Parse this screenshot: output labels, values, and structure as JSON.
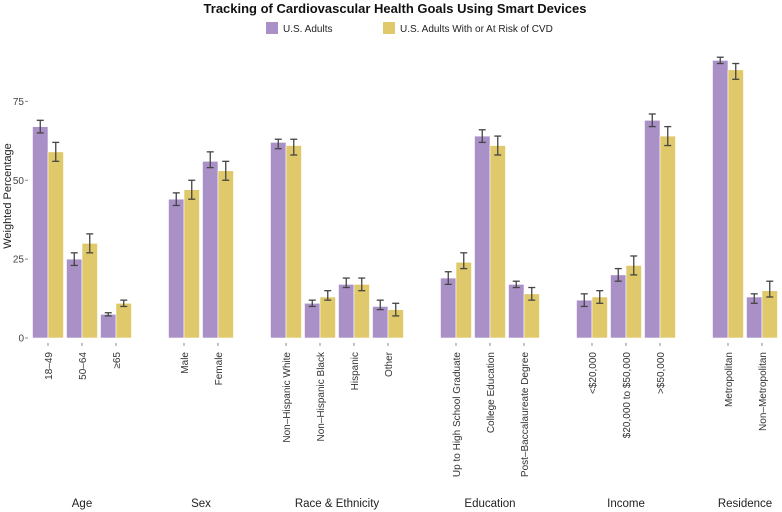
{
  "chart_data": {
    "type": "bar",
    "title": "Tracking of Cardiovascular Health Goals Using Smart Devices",
    "xlabel": "",
    "ylabel": "Weighted Percentage",
    "ylim": [
      0,
      90
    ],
    "yticks": [
      0,
      25,
      50,
      75
    ],
    "ytick_labels": [
      "0",
      "25",
      "50",
      "75"
    ],
    "grid": false,
    "legend_position": "top",
    "series": [
      {
        "name": "U.S. Adults",
        "color": "#a990c6"
      },
      {
        "name": "U.S. Adults With or At Risk of CVD",
        "color": "#e0c96a"
      }
    ],
    "panels": [
      {
        "label": "Age",
        "categories": [
          {
            "label": "18–49",
            "values": [
              67,
              59
            ],
            "ci": [
              [
                65,
                69
              ],
              [
                56,
                62
              ]
            ]
          },
          {
            "label": "50–64",
            "values": [
              25,
              30
            ],
            "ci": [
              [
                23,
                27
              ],
              [
                27,
                33
              ]
            ]
          },
          {
            "label": "≥65",
            "values": [
              7.5,
              11
            ],
            "ci": [
              [
                7,
                8
              ],
              [
                10,
                12
              ]
            ]
          }
        ]
      },
      {
        "label": "Sex",
        "categories": [
          {
            "label": "Male",
            "values": [
              44,
              47
            ],
            "ci": [
              [
                42,
                46
              ],
              [
                44,
                50
              ]
            ]
          },
          {
            "label": "Female",
            "values": [
              56,
              53
            ],
            "ci": [
              [
                54,
                59
              ],
              [
                50,
                56
              ]
            ]
          }
        ]
      },
      {
        "label": "Race & Ethnicity",
        "categories": [
          {
            "label": "Non–Hispanic White",
            "values": [
              62,
              61
            ],
            "ci": [
              [
                60,
                63
              ],
              [
                58,
                63
              ]
            ]
          },
          {
            "label": "Non–Hispanic Black",
            "values": [
              11,
              13
            ],
            "ci": [
              [
                10,
                12
              ],
              [
                12,
                15
              ]
            ]
          },
          {
            "label": "Hispanic",
            "values": [
              17,
              17
            ],
            "ci": [
              [
                16,
                19
              ],
              [
                15,
                19
              ]
            ]
          },
          {
            "label": "Other",
            "values": [
              10,
              9
            ],
            "ci": [
              [
                9,
                12
              ],
              [
                7,
                11
              ]
            ]
          }
        ]
      },
      {
        "label": "Education",
        "categories": [
          {
            "label": "Up to High School Graduate",
            "values": [
              19,
              24
            ],
            "ci": [
              [
                17,
                21
              ],
              [
                22,
                27
              ]
            ]
          },
          {
            "label": "College Education",
            "values": [
              64,
              61
            ],
            "ci": [
              [
                62,
                66
              ],
              [
                58,
                64
              ]
            ]
          },
          {
            "label": "Post–Baccalaureate Degree",
            "values": [
              17,
              14
            ],
            "ci": [
              [
                16,
                18
              ],
              [
                12,
                16
              ]
            ]
          }
        ]
      },
      {
        "label": "Income",
        "categories": [
          {
            "label": "<$20,000",
            "values": [
              12,
              13
            ],
            "ci": [
              [
                10,
                14
              ],
              [
                11,
                15
              ]
            ]
          },
          {
            "label": "$20,000 to $50,000",
            "values": [
              20,
              23
            ],
            "ci": [
              [
                18,
                22
              ],
              [
                20,
                26
              ]
            ]
          },
          {
            "label": ">$50,000",
            "values": [
              69,
              64
            ],
            "ci": [
              [
                67,
                71
              ],
              [
                61,
                67
              ]
            ]
          }
        ]
      },
      {
        "label": "Residence",
        "categories": [
          {
            "label": "Metropolitan",
            "values": [
              88,
              85
            ],
            "ci": [
              [
                87,
                89
              ],
              [
                82,
                87
              ]
            ]
          },
          {
            "label": "Non–Metropolitan",
            "values": [
              13,
              15
            ],
            "ci": [
              [
                11,
                14
              ],
              [
                13,
                18
              ]
            ]
          }
        ]
      }
    ]
  }
}
